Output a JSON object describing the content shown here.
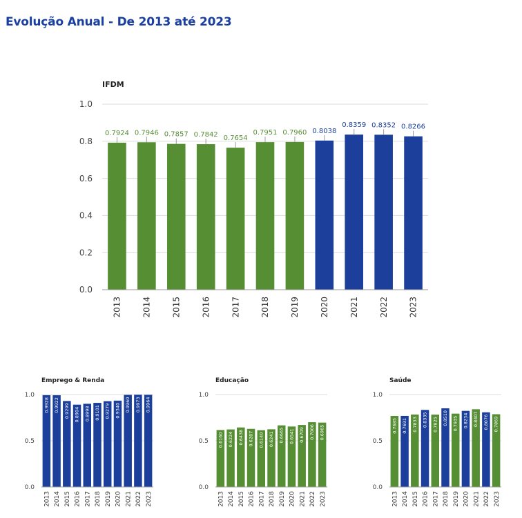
{
  "page_title": "Evolução Anual - De 2013 até 2023",
  "colors": {
    "green": "#568e34",
    "blue": "#1b3f9a",
    "title": "#1a3fa3",
    "grid": "#dcdcdc"
  },
  "chart_data": [
    {
      "type": "bar",
      "title": "IFDM",
      "categories": [
        "2013",
        "2014",
        "2015",
        "2016",
        "2017",
        "2018",
        "2019",
        "2020",
        "2021",
        "2022",
        "2023"
      ],
      "values": [
        0.7924,
        0.7946,
        0.7857,
        0.7842,
        0.7654,
        0.7951,
        0.796,
        0.8038,
        0.8359,
        0.8352,
        0.8266
      ],
      "labels": [
        "0.7924",
        "0.7946",
        "0.7857",
        "0.7842",
        "0.7654",
        "0.7951",
        "0.7960",
        "0.8038",
        "0.8359",
        "0.8352",
        "0.8266"
      ],
      "colors": [
        "green",
        "green",
        "green",
        "green",
        "green",
        "green",
        "green",
        "blue",
        "blue",
        "blue",
        "blue"
      ],
      "ylim": [
        0,
        1
      ],
      "yticks": [
        "0.0",
        "0.2",
        "0.4",
        "0.6",
        "0.8",
        "1.0"
      ],
      "grid": true
    },
    {
      "type": "bar",
      "title": "Emprego & Renda",
      "categories": [
        "2013",
        "2014",
        "2015",
        "2016",
        "2017",
        "2018",
        "2019",
        "2020",
        "2021",
        "2022",
        "2023"
      ],
      "values": [
        0.9928,
        0.9922,
        0.9299,
        0.8904,
        0.8998,
        0.9101,
        0.9279,
        0.934,
        0.996,
        0.9973,
        0.9964
      ],
      "labels": [
        "0.9928",
        "0.9922",
        "0.9299",
        "0.8904",
        "0.8998",
        "0.9101",
        "0.9279",
        "0.9340",
        "0.9960",
        "0.9973",
        "0.9964"
      ],
      "colors": [
        "blue",
        "blue",
        "blue",
        "blue",
        "blue",
        "blue",
        "blue",
        "blue",
        "blue",
        "blue",
        "blue"
      ],
      "ylim": [
        0,
        1
      ],
      "yticks": [
        "0.0",
        "0.5",
        "1.0"
      ],
      "grid": true
    },
    {
      "type": "bar",
      "title": "Educação",
      "categories": [
        "2013",
        "2014",
        "2015",
        "2016",
        "2017",
        "2018",
        "2019",
        "2020",
        "2021",
        "2022",
        "2023"
      ],
      "values": [
        0.616,
        0.6224,
        0.6438,
        0.6287,
        0.614,
        0.6241,
        0.6665,
        0.6541,
        0.6709,
        0.7006,
        0.6965
      ],
      "labels": [
        "0.6160",
        "0.6224",
        "0.6438",
        "0.6287",
        "0.6140",
        "0.6241",
        "0.6665",
        "0.6541",
        "0.6709",
        "0.7006",
        "0.6965"
      ],
      "colors": [
        "green",
        "green",
        "green",
        "green",
        "green",
        "green",
        "green",
        "green",
        "green",
        "green",
        "green"
      ],
      "ylim": [
        0,
        1
      ],
      "yticks": [
        "0.0",
        "0.5",
        "1.0"
      ],
      "grid": true
    },
    {
      "type": "bar",
      "title": "Saúde",
      "categories": [
        "2013",
        "2014",
        "2015",
        "2016",
        "2017",
        "2018",
        "2019",
        "2020",
        "2021",
        "2022",
        "2023"
      ],
      "values": [
        0.7685,
        0.7691,
        0.7833,
        0.8335,
        0.7825,
        0.851,
        0.7935,
        0.8234,
        0.8407,
        0.8076,
        0.7869
      ],
      "labels": [
        "0.7685",
        "0.7691",
        "0.7833",
        "0.8335",
        "0.7825",
        "0.8510",
        "0.7935",
        "0.8234",
        "0.8407",
        "0.8076",
        "0.7869"
      ],
      "colors": [
        "green",
        "blue",
        "green",
        "blue",
        "green",
        "blue",
        "green",
        "blue",
        "green",
        "blue",
        "green"
      ],
      "ylim": [
        0,
        1
      ],
      "yticks": [
        "0.0",
        "0.5",
        "1.0"
      ],
      "grid": true
    }
  ]
}
